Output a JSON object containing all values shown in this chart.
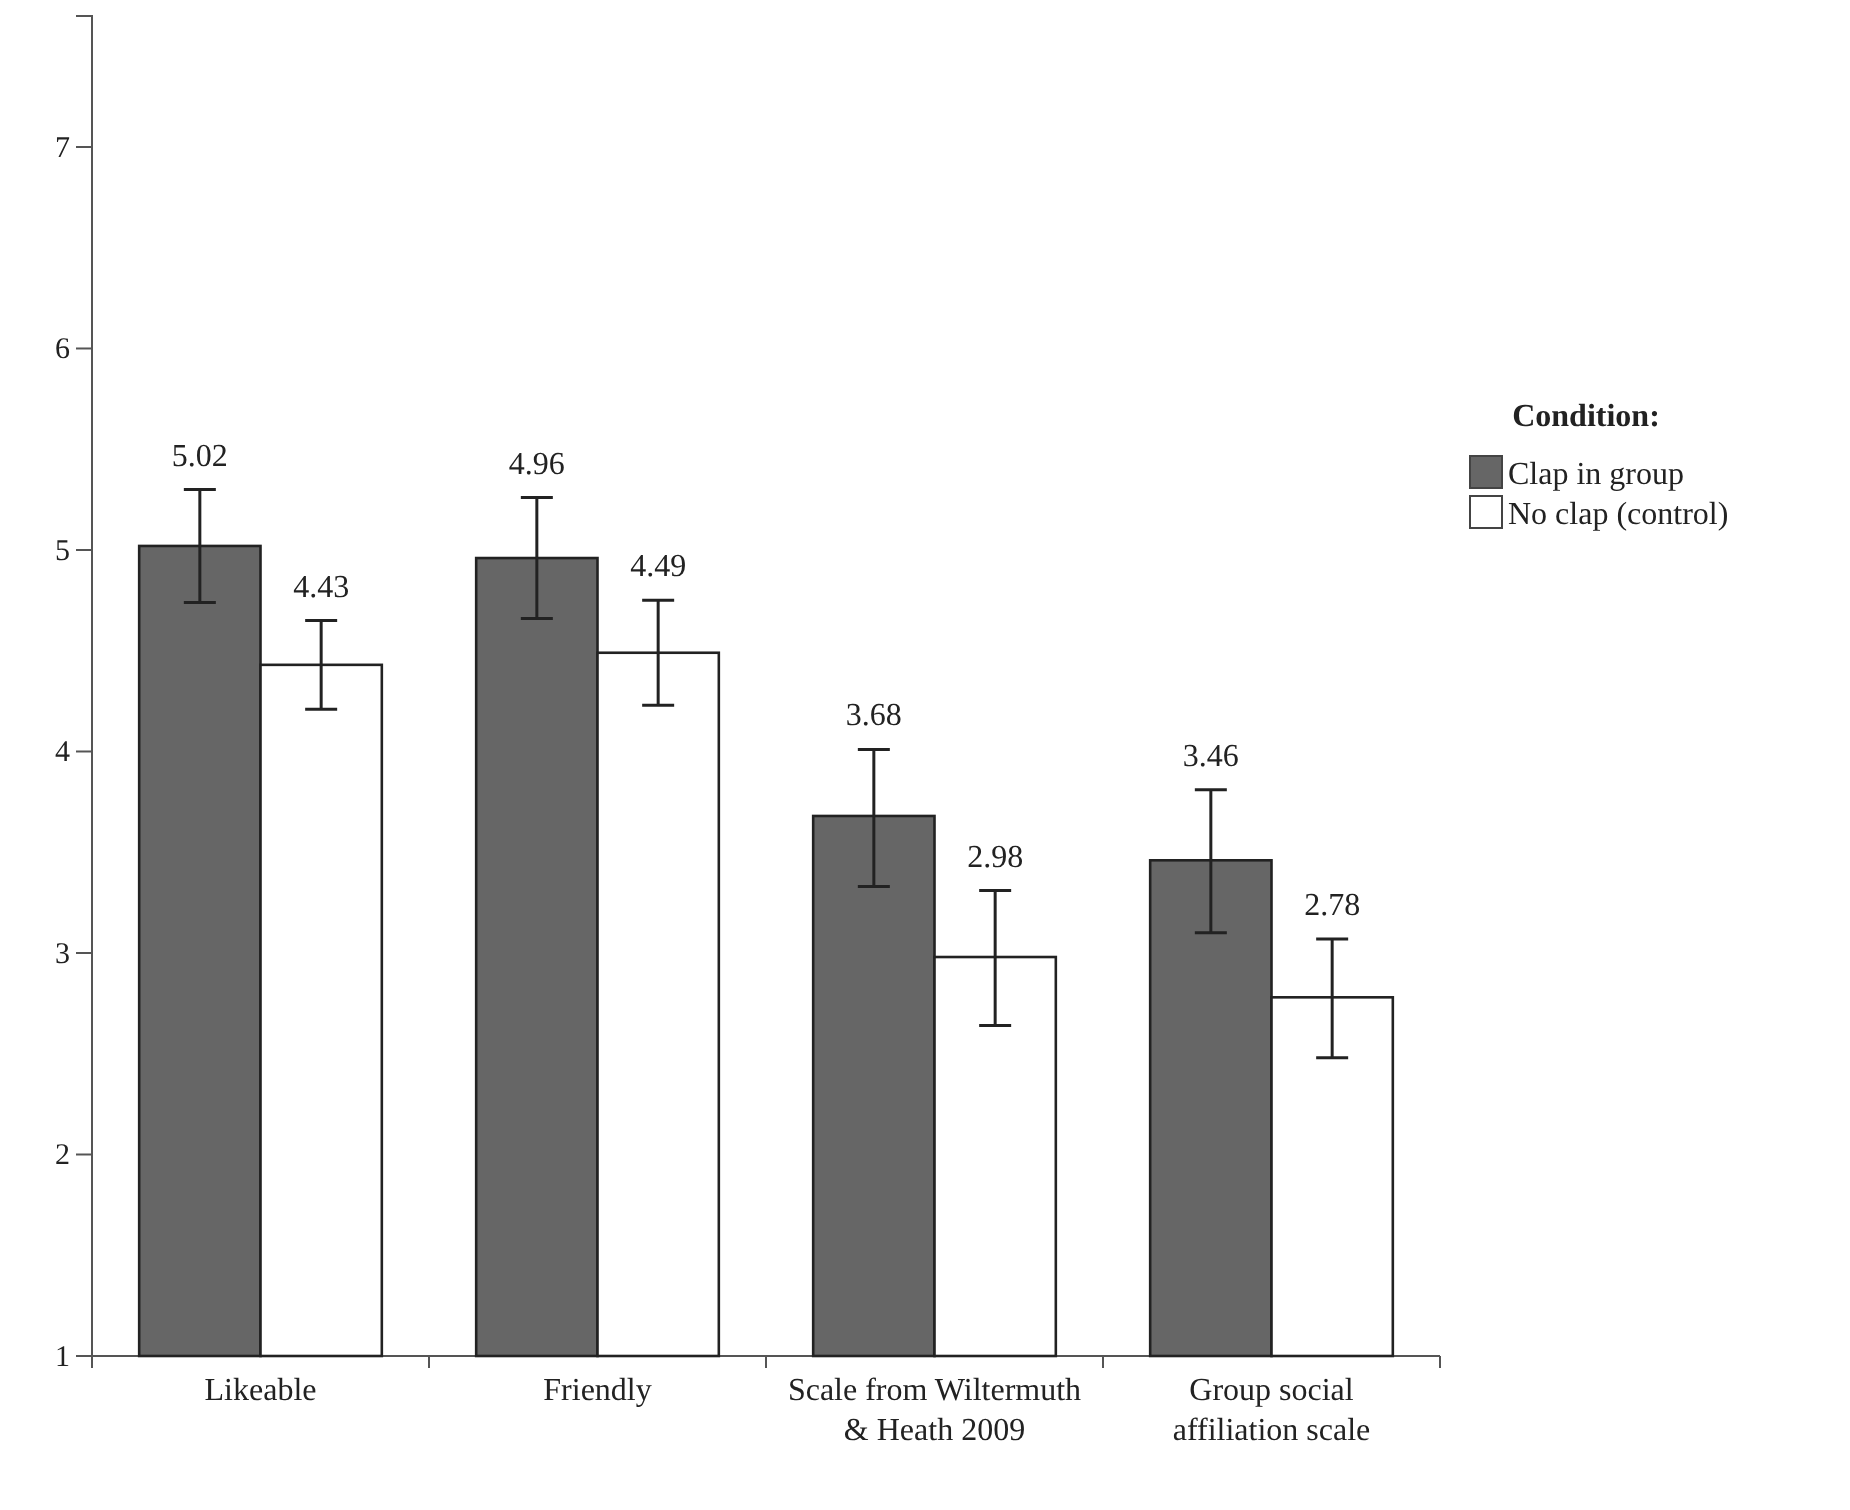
{
  "chart_data": {
    "type": "bar",
    "categories": [
      "Likeable",
      "Friendly",
      "Scale from Wiltermuth & Heath 2009",
      "Group social affiliation scale"
    ],
    "series": [
      {
        "name": "Clap in group",
        "color": "#666666",
        "values": [
          5.02,
          4.96,
          3.68,
          3.46
        ],
        "errors": [
          [
            4.74,
            5.3
          ],
          [
            4.66,
            5.26
          ],
          [
            3.33,
            4.01
          ],
          [
            3.1,
            3.81
          ]
        ]
      },
      {
        "name": "No clap (control)",
        "color": "#ffffff",
        "values": [
          4.43,
          4.49,
          2.98,
          2.78
        ],
        "errors": [
          [
            4.21,
            4.65
          ],
          [
            4.23,
            4.75
          ],
          [
            2.64,
            3.31
          ],
          [
            2.48,
            3.07
          ]
        ]
      }
    ],
    "ylim": [
      1,
      7.65
    ],
    "yticks": [
      1,
      2,
      3,
      4,
      5,
      6,
      7
    ],
    "data_labels": true,
    "legend": "right",
    "legend_title": "Condition:",
    "grid": false
  }
}
